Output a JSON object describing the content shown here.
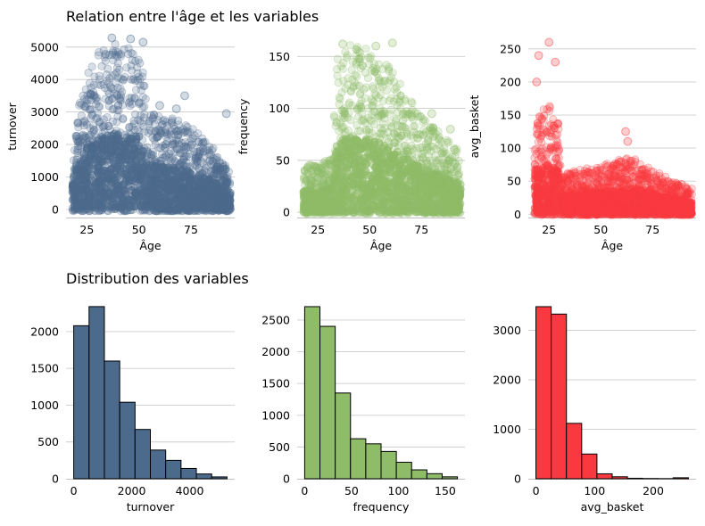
{
  "titles": {
    "top": "Relation entre l'âge et les variables",
    "bottom": "Distribution des variables"
  },
  "chart_data": [
    {
      "type": "scatter",
      "panel": "age-vs-turnover",
      "xlabel": "Âge",
      "ylabel": "turnover",
      "color": "#4c6a8c",
      "xlim": [
        15,
        96
      ],
      "ylim": [
        -250,
        5350
      ],
      "xticks": [
        25,
        50,
        75
      ],
      "yticks": [
        0,
        1000,
        2000,
        3000,
        4000,
        5000
      ],
      "grid": "horizontal",
      "profile": {
        "x_range": [
          18,
          94
        ],
        "envelope": [
          [
            18,
            2400
          ],
          [
            25,
            4300
          ],
          [
            30,
            4900
          ],
          [
            35,
            5100
          ],
          [
            40,
            5200
          ],
          [
            50,
            5100
          ],
          [
            55,
            3000
          ],
          [
            65,
            2900
          ],
          [
            75,
            2600
          ],
          [
            85,
            2000
          ],
          [
            94,
            1200
          ]
        ],
        "outliers": [
          [
            46,
            5250
          ],
          [
            52,
            5150
          ],
          [
            72,
            3500
          ],
          [
            92,
            2950
          ],
          [
            60,
            3200
          ],
          [
            68,
            3100
          ],
          [
            37,
            5280
          ]
        ]
      }
    },
    {
      "type": "scatter",
      "panel": "age-vs-frequency",
      "xlabel": "Âge",
      "ylabel": "frequency",
      "color": "#8fbc68",
      "xlim": [
        15,
        96
      ],
      "ylim": [
        -5,
        170
      ],
      "xticks": [
        25,
        50,
        75
      ],
      "yticks": [
        0,
        50,
        100,
        150
      ],
      "grid": "horizontal",
      "profile": {
        "x_range": [
          18,
          94
        ],
        "envelope": [
          [
            18,
            45
          ],
          [
            28,
            50
          ],
          [
            32,
            55
          ],
          [
            34,
            150
          ],
          [
            40,
            162
          ],
          [
            50,
            158
          ],
          [
            60,
            140
          ],
          [
            70,
            110
          ],
          [
            80,
            85
          ],
          [
            94,
            60
          ]
        ],
        "outliers": [
          [
            53,
            160
          ],
          [
            61,
            163
          ],
          [
            80,
            95
          ],
          [
            89,
            80
          ],
          [
            91,
            60
          ],
          [
            37,
            162
          ]
        ]
      }
    },
    {
      "type": "scatter",
      "panel": "age-vs-avg-basket",
      "xlabel": "Âge",
      "ylabel": "avg_basket",
      "color": "#f9393f",
      "xlim": [
        15,
        96
      ],
      "ylim": [
        -5,
        270
      ],
      "xticks": [
        25,
        50,
        75
      ],
      "yticks": [
        0,
        50,
        100,
        150,
        200,
        250
      ],
      "grid": "horizontal",
      "profile": {
        "x_range": [
          18,
          94
        ],
        "envelope": [
          [
            18,
            150
          ],
          [
            25,
            170
          ],
          [
            30,
            140
          ],
          [
            31,
            60
          ],
          [
            40,
            70
          ],
          [
            50,
            75
          ],
          [
            65,
            90
          ],
          [
            80,
            60
          ],
          [
            94,
            40
          ]
        ],
        "outliers": [
          [
            25,
            260
          ],
          [
            20,
            240
          ],
          [
            28,
            230
          ],
          [
            19,
            200
          ],
          [
            62,
            125
          ],
          [
            63,
            110
          ],
          [
            89,
            45
          ],
          [
            92,
            30
          ]
        ]
      }
    },
    {
      "type": "bar",
      "panel": "hist-turnover",
      "xlabel": "turnover",
      "ylabel": "",
      "color": "#4c6a8c",
      "edges": [
        0,
        529,
        1058,
        1587,
        2116,
        2645,
        3174,
        3703,
        4232,
        4761,
        5290
      ],
      "values": [
        2080,
        2340,
        1600,
        1040,
        670,
        390,
        250,
        140,
        65,
        25
      ],
      "xlim": [
        -265,
        5555
      ],
      "ylim": [
        0,
        2460
      ],
      "xticks": [
        0,
        2000,
        4000
      ],
      "yticks": [
        0,
        500,
        1000,
        1500,
        2000
      ],
      "grid": "horizontal"
    },
    {
      "type": "bar",
      "panel": "hist-frequency",
      "xlabel": "frequency",
      "ylabel": "",
      "color": "#8fbc68",
      "edges": [
        0,
        16.3,
        32.6,
        48.9,
        65.2,
        81.5,
        97.8,
        114.1,
        130.4,
        146.7,
        163
      ],
      "values": [
        2710,
        2400,
        1350,
        630,
        550,
        430,
        260,
        140,
        80,
        30
      ],
      "xlim": [
        -8,
        171
      ],
      "ylim": [
        0,
        2850
      ],
      "xticks": [
        0,
        50,
        100,
        150
      ],
      "yticks": [
        0,
        500,
        1000,
        1500,
        2000,
        2500
      ],
      "grid": "horizontal"
    },
    {
      "type": "bar",
      "panel": "hist-avg-basket",
      "xlabel": "avg_basket",
      "ylabel": "",
      "color": "#f9393f",
      "edges": [
        0,
        26,
        52,
        78,
        104,
        130,
        156,
        182,
        208,
        234,
        260
      ],
      "values": [
        3480,
        3330,
        1120,
        500,
        100,
        40,
        10,
        5,
        3,
        20
      ],
      "xlim": [
        -13,
        273
      ],
      "ylim": [
        0,
        3660
      ],
      "xticks": [
        0,
        100,
        200
      ],
      "yticks": [
        0,
        1000,
        2000,
        3000
      ],
      "grid": "horizontal"
    }
  ]
}
